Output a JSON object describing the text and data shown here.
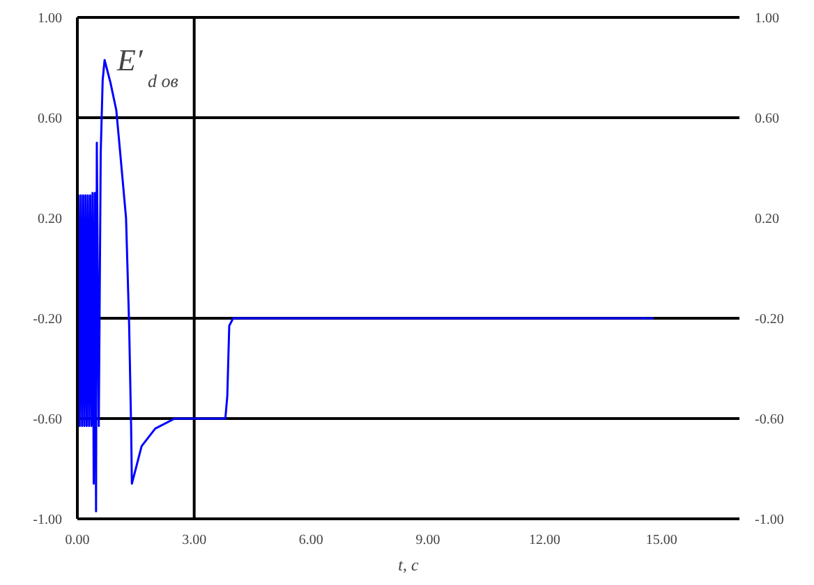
{
  "chart_data": {
    "type": "line",
    "xlabel": "t, с",
    "annotations": [
      "E′$_{d ов}$"
    ],
    "xlim": [
      0,
      17
    ],
    "ylim": [
      -1.0,
      1.0
    ],
    "y2lim": [
      -1.0,
      1.0
    ],
    "xticks": [
      {
        "value": 0,
        "label": "0.00"
      },
      {
        "value": 3,
        "label": "3.00"
      },
      {
        "value": 6,
        "label": "6.00"
      },
      {
        "value": 9,
        "label": "9.00"
      },
      {
        "value": 12,
        "label": "12.00"
      },
      {
        "value": 15,
        "label": "15.00"
      }
    ],
    "yticks": [
      {
        "value": -1.0,
        "label": "-1.00"
      },
      {
        "value": -0.6,
        "label": "-0.60"
      },
      {
        "value": -0.2,
        "label": "-0.20"
      },
      {
        "value": 0.2,
        "label": "0.20"
      },
      {
        "value": 0.6,
        "label": "0.60"
      },
      {
        "value": 1.0,
        "label": "1.00"
      }
    ],
    "y2ticks": [
      {
        "value": -1.0,
        "label": "-1.00"
      },
      {
        "value": -0.6,
        "label": "-0.60"
      },
      {
        "value": -0.2,
        "label": "-0.20"
      },
      {
        "value": 0.2,
        "label": "0.20"
      },
      {
        "value": 0.6,
        "label": "0.60"
      },
      {
        "value": 1.0,
        "label": "1.00"
      }
    ],
    "ref_lines": [
      {
        "axis": "y",
        "value": 0.6,
        "color": "#000000"
      },
      {
        "axis": "y",
        "value": -0.2,
        "color": "#000000"
      },
      {
        "axis": "y",
        "value": -0.6,
        "color": "#000000"
      },
      {
        "axis": "x",
        "value": 3,
        "color": "#000000"
      }
    ],
    "series": [
      {
        "color": "#0000ff",
        "x": [
          0,
          0.01,
          0.03,
          0.06,
          0.09,
          0.12,
          0.15,
          0.18,
          0.21,
          0.24,
          0.27,
          0.3,
          0.33,
          0.36,
          0.39,
          0.42,
          0.45,
          0.48,
          0.5,
          0.55,
          0.6,
          0.65,
          0.7,
          0.75,
          0.85,
          1.0,
          1.1,
          1.25,
          1.33,
          1.38,
          1.4,
          1.65,
          2.0,
          2.5,
          3.0,
          3.8,
          3.85,
          3.9,
          4.0,
          14.8
        ],
        "values": [
          1.0,
          -0.63,
          0.29,
          -0.63,
          0.29,
          -0.63,
          0.29,
          -0.63,
          0.29,
          -0.63,
          0.29,
          -0.63,
          0.29,
          -0.63,
          0.3,
          -0.86,
          0.3,
          -0.97,
          0.5,
          -0.63,
          0.46,
          0.75,
          0.83,
          0.8,
          0.74,
          0.63,
          0.46,
          0.2,
          -0.23,
          -0.63,
          -0.86,
          -0.71,
          -0.64,
          -0.6,
          -0.6,
          -0.6,
          -0.51,
          -0.23,
          -0.2,
          -0.2
        ]
      }
    ]
  }
}
